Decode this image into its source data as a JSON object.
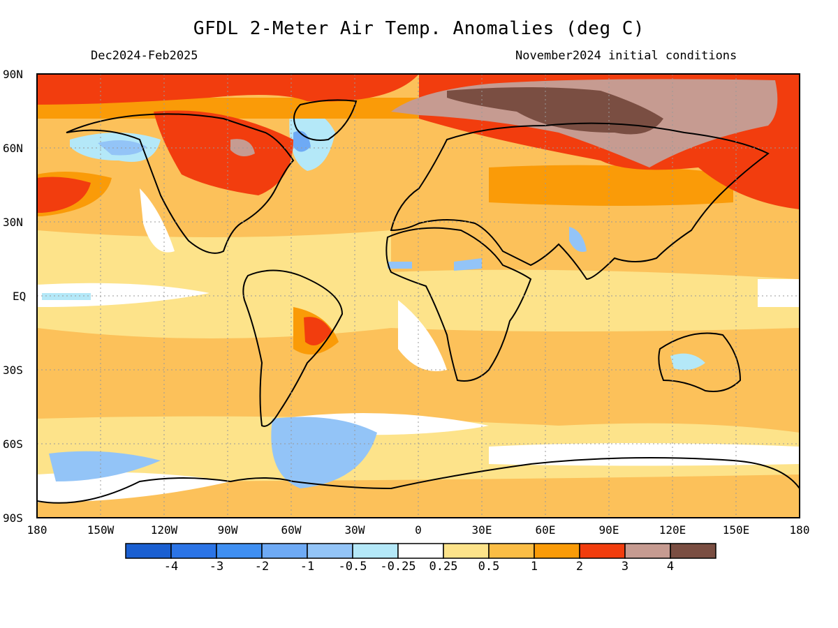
{
  "title": "GFDL 2-Meter Air Temp. Anomalies (deg C)",
  "subtitle_left": "Dec2024-Feb2025",
  "subtitle_right": "November2024 initial conditions",
  "lat_labels": [
    "90N",
    "60N",
    "30N",
    "EQ",
    "30S",
    "60S",
    "90S"
  ],
  "lon_labels": [
    "180",
    "150W",
    "120W",
    "90W",
    "60W",
    "30W",
    "0",
    "30E",
    "60E",
    "90E",
    "120E",
    "150E",
    "180"
  ],
  "colorbar": {
    "labels": [
      "-4",
      "-3",
      "-2",
      "-1",
      "-0.5",
      "-0.25",
      "0.25",
      "0.5",
      "1",
      "2",
      "3",
      "4"
    ],
    "colors": [
      "#1a5fd1",
      "#2b74e6",
      "#3f8ff2",
      "#6eaaf5",
      "#93c4f7",
      "#b4e8f8",
      "#ffffff",
      "#fde38a",
      "#fbbd45",
      "#fa9b08",
      "#f23d0e",
      "#c69b91",
      "#7a4e42"
    ]
  },
  "colors": {
    "ocean_base": "#fcc15a",
    "coast": "#000000"
  }
}
